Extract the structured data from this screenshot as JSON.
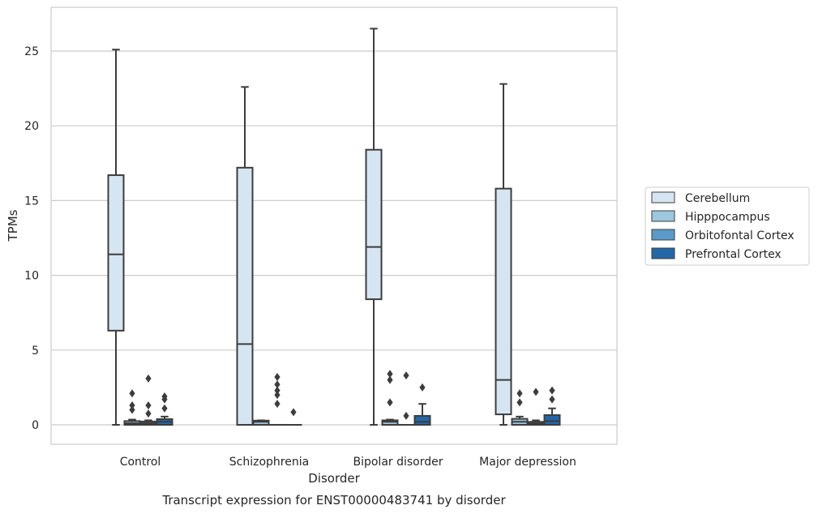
{
  "chart_data": {
    "type": "box",
    "caption": "Transcript expression for ENST00000483741 by disorder",
    "xlabel": "Disorder",
    "ylabel": "TPMs",
    "ylim": [
      -1.3,
      27.6
    ],
    "yticks": [
      0,
      5,
      10,
      15,
      20,
      25
    ],
    "grid": true,
    "legend_position": "right",
    "categories": [
      "Control",
      "Schizophrenia",
      "Bipolar disorder",
      "Major depression"
    ],
    "series": [
      {
        "name": "Cerebellum",
        "color": "#d6e5f2",
        "boxes": [
          {
            "whislo": 0,
            "q1": 6.3,
            "med": 11.4,
            "q3": 16.7,
            "whishi": 25.1,
            "fliers": []
          },
          {
            "whislo": 0,
            "q1": 0,
            "med": 5.4,
            "q3": 17.2,
            "whishi": 22.6,
            "fliers": []
          },
          {
            "whislo": 0,
            "q1": 8.4,
            "med": 11.9,
            "q3": 18.4,
            "whishi": 26.5,
            "fliers": []
          },
          {
            "whislo": 0,
            "q1": 0.7,
            "med": 3.0,
            "q3": 15.8,
            "whishi": 22.8,
            "fliers": []
          }
        ]
      },
      {
        "name": "Hipppocampus",
        "color": "#9ec6de",
        "boxes": [
          {
            "whislo": 0,
            "q1": 0,
            "med": 0.1,
            "q3": 0.25,
            "whishi": 0.35,
            "fliers": [
              1.0,
              1.3,
              2.1
            ]
          },
          {
            "whislo": 0,
            "q1": 0,
            "med": 0.2,
            "q3": 0.28,
            "whishi": 0.3,
            "fliers": []
          },
          {
            "whislo": 0,
            "q1": 0,
            "med": 0.2,
            "q3": 0.3,
            "whishi": 0.35,
            "fliers": [
              1.5,
              3.0,
              3.4
            ]
          },
          {
            "whislo": 0,
            "q1": 0,
            "med": 0.2,
            "q3": 0.4,
            "whishi": 0.55,
            "fliers": [
              1.5,
              2.1
            ]
          }
        ]
      },
      {
        "name": "Orbitofontal Cortex",
        "color": "#5b9ac9",
        "boxes": [
          {
            "whislo": 0,
            "q1": 0,
            "med": 0.1,
            "q3": 0.22,
            "whishi": 0.3,
            "fliers": [
              0.75,
              1.3,
              3.1
            ]
          },
          {
            "whislo": 0,
            "q1": 0,
            "med": 0,
            "q3": 0,
            "whishi": 0,
            "fliers": [
              1.4,
              2.0,
              2.3,
              2.7,
              3.2
            ]
          },
          {
            "whislo": 0,
            "q1": 0,
            "med": 0,
            "q3": 0,
            "whishi": 0,
            "fliers": [
              0.6,
              3.3
            ]
          },
          {
            "whislo": 0,
            "q1": 0,
            "med": 0.1,
            "q3": 0.2,
            "whishi": 0.3,
            "fliers": [
              2.2
            ]
          }
        ]
      },
      {
        "name": "Prefrontal Cortex",
        "color": "#2467a8",
        "boxes": [
          {
            "whislo": 0,
            "q1": 0,
            "med": 0.2,
            "q3": 0.38,
            "whishi": 0.55,
            "fliers": [
              1.1,
              1.7,
              1.9
            ]
          },
          {
            "whislo": 0,
            "q1": 0,
            "med": 0,
            "q3": 0,
            "whishi": 0,
            "fliers": [
              0.85
            ]
          },
          {
            "whislo": 0,
            "q1": 0,
            "med": 0.2,
            "q3": 0.6,
            "whishi": 1.4,
            "fliers": [
              2.5
            ]
          },
          {
            "whislo": 0,
            "q1": 0,
            "med": 0.25,
            "q3": 0.65,
            "whishi": 1.1,
            "fliers": [
              1.7,
              2.3
            ]
          }
        ]
      }
    ]
  }
}
